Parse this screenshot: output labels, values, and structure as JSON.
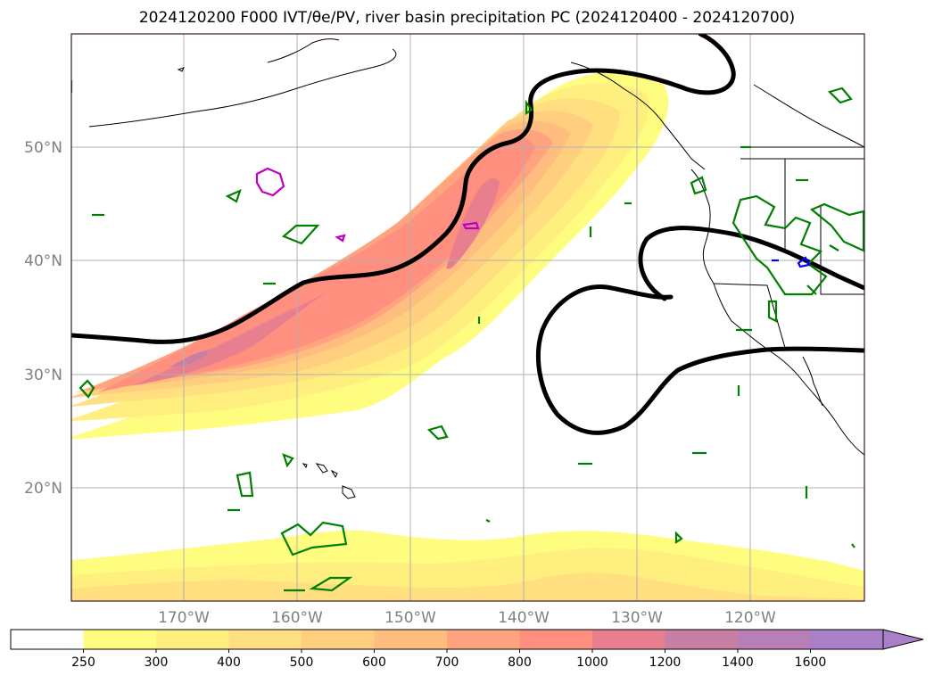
{
  "title": "2024120200 F000 IVT/θe/PV, river basin precipitation PC (2024120400 - 2024120700)",
  "colors": {
    "frame": "#3a1a3a",
    "grid": "#b0b0b0",
    "coast": "#000000",
    "theta_contour": "#000000",
    "pv_contour": "#008000",
    "magenta_contour": "#c000c0",
    "blue_contour": "#0000ff"
  },
  "latitude_labels": [
    "50°N",
    "40°N",
    "30°N",
    "20°N"
  ],
  "longitude_labels": [
    "170°W",
    "160°W",
    "150°W",
    "140°W",
    "130°W",
    "120°W"
  ],
  "colorbar": {
    "extend": "max",
    "labels": [
      "250",
      "300",
      "400",
      "500",
      "600",
      "700",
      "800",
      "1000",
      "1200",
      "1400",
      "1600"
    ],
    "colors": [
      "#ffffff",
      "#fffd7f",
      "#ffef7f",
      "#ffdf7f",
      "#ffcf7f",
      "#ffbe7f",
      "#ffa47f",
      "#ff8f7f",
      "#e77f8f",
      "#c87fa4",
      "#b87fb6",
      "#a97fc8"
    ]
  }
}
